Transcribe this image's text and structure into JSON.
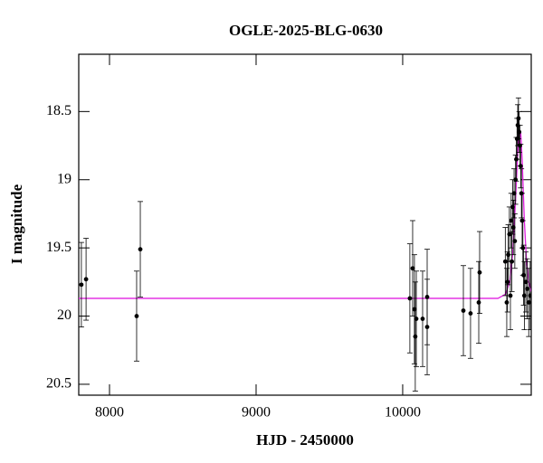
{
  "chart_data": {
    "type": "scatter",
    "title": "OGLE-2025-BLG-0630",
    "x_label": "HJD - 2450000",
    "y_label": "I magnitude",
    "xlim": [
      7790,
      10877
    ],
    "ylim": [
      18.08,
      20.58
    ],
    "invert_y": true,
    "xticks": [
      8000,
      9000,
      10000
    ],
    "yticks": [
      18.5,
      19,
      19.5,
      20,
      20.5
    ],
    "points": {
      "color": "#000000",
      "x": [
        7808,
        7840,
        8185,
        8210,
        10049,
        10068,
        10080,
        10086,
        10093,
        10136,
        10167,
        10167,
        10414,
        10463,
        10519,
        10525,
        10700,
        10710,
        10715,
        10720,
        10728,
        10735,
        10740,
        10745,
        10750,
        10755,
        10760,
        10765,
        10770,
        10775,
        10780,
        10785,
        10790,
        10795,
        10800,
        10805,
        10810,
        10815,
        10820,
        10825,
        10830,
        10840,
        10850,
        10860,
        10870
      ],
      "values": [
        19.77,
        19.73,
        20.0,
        19.51,
        19.87,
        19.65,
        19.95,
        20.15,
        20.02,
        20.02,
        19.86,
        20.08,
        19.96,
        19.98,
        19.9,
        19.68,
        19.6,
        19.9,
        19.75,
        19.55,
        19.4,
        19.85,
        19.3,
        19.6,
        19.2,
        19.35,
        19.1,
        19.45,
        19.0,
        18.85,
        18.7,
        18.6,
        18.55,
        18.65,
        18.75,
        18.9,
        19.1,
        19.3,
        19.5,
        19.7,
        19.85,
        19.75,
        19.8,
        19.9,
        19.85
      ],
      "errors": [
        0.31,
        0.3,
        0.33,
        0.35,
        0.4,
        0.35,
        0.4,
        0.4,
        0.35,
        0.35,
        0.35,
        0.35,
        0.33,
        0.33,
        0.3,
        0.3,
        0.25,
        0.25,
        0.22,
        0.22,
        0.2,
        0.25,
        0.2,
        0.22,
        0.2,
        0.2,
        0.18,
        0.2,
        0.18,
        0.16,
        0.15,
        0.15,
        0.15,
        0.15,
        0.15,
        0.16,
        0.18,
        0.2,
        0.2,
        0.22,
        0.25,
        0.22,
        0.22,
        0.25,
        0.25
      ]
    },
    "model": {
      "color": "#e020e0",
      "x": [
        7790,
        10650,
        10700,
        10730,
        10750,
        10770,
        10785,
        10795,
        10805,
        10815,
        10830,
        10845,
        10860,
        10877
      ],
      "values": [
        19.87,
        19.87,
        19.84,
        19.75,
        19.55,
        19.15,
        18.8,
        18.65,
        18.65,
        18.85,
        19.3,
        19.6,
        19.75,
        19.82
      ]
    }
  }
}
